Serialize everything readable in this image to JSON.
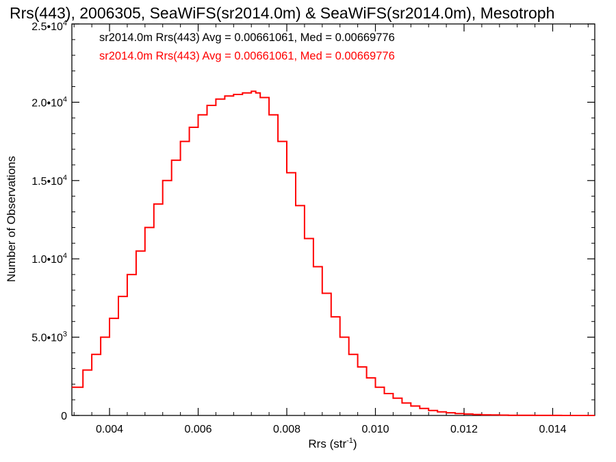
{
  "chart_data": {
    "type": "line",
    "title": "Rrs(443), 2006305, SeaWiFS(sr2014.0m) & SeaWiFS(sr2014.0m), Mesotroph",
    "xlabel": {
      "base": "Rrs (str",
      "sup": "-1",
      "close": ")"
    },
    "ylabel": "Number of Observations",
    "xlim": [
      0.00315,
      0.01495
    ],
    "ylim": [
      0,
      25000
    ],
    "x_ticks": [
      {
        "v": 0.004,
        "label": "0.004"
      },
      {
        "v": 0.006,
        "label": "0.006"
      },
      {
        "v": 0.008,
        "label": "0.008"
      },
      {
        "v": 0.01,
        "label": "0.010"
      },
      {
        "v": 0.012,
        "label": "0.012"
      },
      {
        "v": 0.014,
        "label": "0.014"
      }
    ],
    "y_ticks": [
      {
        "v": 0,
        "label": "0",
        "exp": ""
      },
      {
        "v": 5000,
        "label": "5.0•10",
        "exp": "3"
      },
      {
        "v": 10000,
        "label": "1.0•10",
        "exp": "4"
      },
      {
        "v": 15000,
        "label": "1.5•10",
        "exp": "4"
      },
      {
        "v": 20000,
        "label": "2.0•10",
        "exp": "4"
      },
      {
        "v": 25000,
        "label": "2.5•10",
        "exp": "4"
      }
    ],
    "legend": [
      {
        "text": "sr2014.0m Rrs(443) Avg = 0.00661061, Med = 0.00669776",
        "color": "#000000"
      },
      {
        "text": "sr2014.0m Rrs(443) Avg = 0.00661061, Med = 0.00669776",
        "color": "#ff0000"
      }
    ],
    "legend_position": "top-left",
    "grid": false,
    "series": [
      {
        "color": "#ff0000",
        "step": true,
        "x": [
          0.00315,
          0.0034,
          0.0036,
          0.0038,
          0.004,
          0.0042,
          0.0044,
          0.0046,
          0.0048,
          0.005,
          0.0052,
          0.0054,
          0.0056,
          0.0058,
          0.006,
          0.0062,
          0.0064,
          0.0066,
          0.0068,
          0.007,
          0.0072,
          0.0073,
          0.0074,
          0.0076,
          0.0078,
          0.008,
          0.0082,
          0.0084,
          0.0086,
          0.0088,
          0.009,
          0.0092,
          0.0094,
          0.0096,
          0.0098,
          0.01,
          0.0102,
          0.0104,
          0.0106,
          0.0108,
          0.011,
          0.0112,
          0.0114,
          0.0116,
          0.0118,
          0.012,
          0.0122,
          0.0124,
          0.0126,
          0.0128,
          0.013,
          0.0132,
          0.0134,
          0.0136,
          0.0138,
          0.014,
          0.0142,
          0.0144,
          0.0146,
          0.0148,
          0.01495
        ],
        "y": [
          1800,
          2900,
          3900,
          5000,
          6200,
          7600,
          9000,
          10500,
          12000,
          13500,
          15000,
          16300,
          17500,
          18400,
          19200,
          19800,
          20200,
          20400,
          20500,
          20600,
          20700,
          20600,
          20300,
          19200,
          17500,
          15500,
          13400,
          11300,
          9500,
          7800,
          6300,
          5000,
          3900,
          3100,
          2400,
          1800,
          1400,
          1100,
          800,
          600,
          450,
          320,
          230,
          170,
          120,
          90,
          60,
          40,
          30,
          20,
          15,
          10,
          8,
          6,
          4,
          3,
          2,
          1,
          1,
          1,
          1
        ]
      }
    ]
  }
}
